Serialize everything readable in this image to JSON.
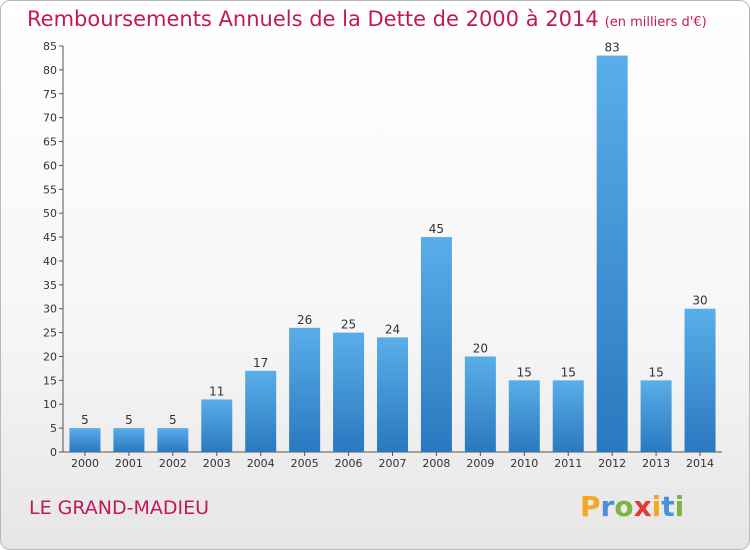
{
  "chart_data": {
    "type": "bar",
    "title": "Remboursements Annuels de la Dette de 2000 à 2014",
    "unit": "(en milliers d'€)",
    "categories": [
      "2000",
      "2001",
      "2002",
      "2003",
      "2004",
      "2005",
      "2006",
      "2007",
      "2008",
      "2009",
      "2010",
      "2011",
      "2012",
      "2013",
      "2014"
    ],
    "values": [
      5,
      5,
      5,
      11,
      17,
      26,
      25,
      24,
      45,
      20,
      15,
      15,
      83,
      15,
      30
    ],
    "ylim": [
      0,
      85
    ],
    "yticks": [
      0,
      5,
      10,
      15,
      20,
      25,
      30,
      35,
      40,
      45,
      50,
      55,
      60,
      65,
      70,
      75,
      80,
      85
    ],
    "grid": false,
    "bar_color": "#3a8fd8"
  },
  "footer": {
    "commune": "LE GRAND-MADIEU",
    "logo": "Proxiti",
    "logo_letters": [
      {
        "ch": "P",
        "color": "#f5a623"
      },
      {
        "ch": "r",
        "color": "#4a90d9"
      },
      {
        "ch": "o",
        "color": "#7cb342"
      },
      {
        "ch": "x",
        "color": "#e53935"
      },
      {
        "ch": "i",
        "color": "#f5a623"
      },
      {
        "ch": "t",
        "color": "#4a90d9"
      },
      {
        "ch": "i",
        "color": "#7cb342"
      }
    ]
  }
}
